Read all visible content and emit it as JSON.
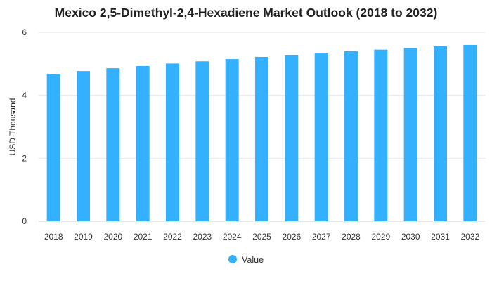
{
  "chart_data": {
    "type": "bar",
    "title": "Mexico 2,5-Dimethyl-2,4-Hexadiene Market Outlook (2018 to 2032)",
    "xlabel": "",
    "ylabel": "USD Thousand",
    "categories": [
      "2018",
      "2019",
      "2020",
      "2021",
      "2022",
      "2023",
      "2024",
      "2025",
      "2026",
      "2027",
      "2028",
      "2029",
      "2030",
      "2031",
      "2032"
    ],
    "series": [
      {
        "name": "Value",
        "values": [
          4.67,
          4.77,
          4.86,
          4.93,
          5.01,
          5.08,
          5.15,
          5.22,
          5.27,
          5.33,
          5.4,
          5.45,
          5.5,
          5.56,
          5.6
        ]
      }
    ],
    "ylim": [
      0,
      6
    ],
    "yticks": [
      0,
      2,
      4,
      6
    ],
    "grid": true,
    "legend_position": "bottom",
    "colors": {
      "bar": "#33b1ff",
      "grid": "#e6e6e6",
      "text": "#333333"
    }
  }
}
